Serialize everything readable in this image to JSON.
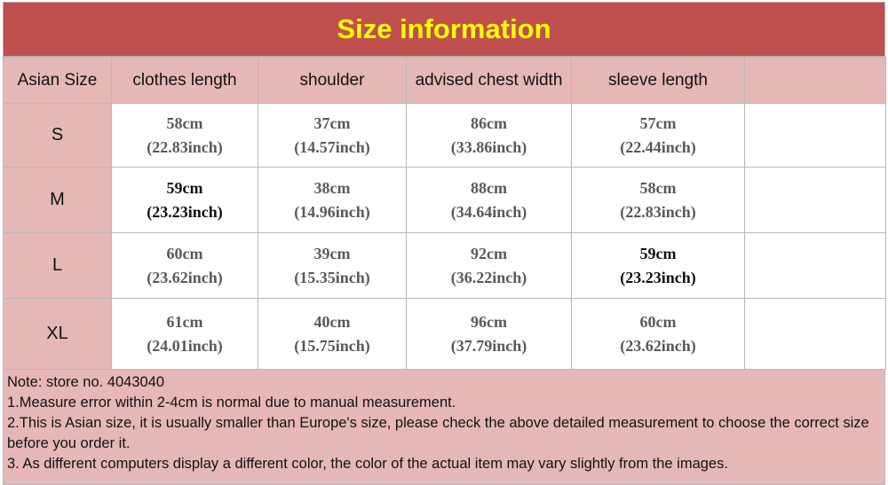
{
  "header": {
    "title": "Size information"
  },
  "table": {
    "columns": [
      "Asian Size",
      "clothes length",
      "shoulder",
      "advised chest width",
      "sleeve length"
    ],
    "rows": [
      {
        "size": "S",
        "cells": [
          [
            "58cm",
            "(22.83inch)"
          ],
          [
            "37cm",
            "(14.57inch)"
          ],
          [
            "86cm",
            "(33.86inch)"
          ],
          [
            "57cm",
            "(22.44inch)"
          ]
        ]
      },
      {
        "size": "M",
        "cells": [
          [
            "59cm",
            "(23.23inch)"
          ],
          [
            "38cm",
            "(14.96inch)"
          ],
          [
            "88cm",
            "(34.64inch)"
          ],
          [
            "58cm",
            "(22.83inch)"
          ]
        ]
      },
      {
        "size": "L",
        "cells": [
          [
            "60cm",
            "(23.62inch)"
          ],
          [
            "39cm",
            "(15.35inch)"
          ],
          [
            "92cm",
            "(36.22inch)"
          ],
          [
            "59cm",
            "(23.23inch)"
          ]
        ]
      },
      {
        "size": "XL",
        "cells": [
          [
            "61cm",
            "(24.01inch)"
          ],
          [
            "40cm",
            "(15.75inch)"
          ],
          [
            "96cm",
            "(37.79inch)"
          ],
          [
            "60cm",
            "(23.62inch)"
          ]
        ]
      }
    ]
  },
  "notes": [
    "Note: store no. 4043040",
    "1.Measure error within 2-4cm is normal due to manual measurement.",
    "2.This is Asian size, it is usually smaller than Europe's size, please check the above detailed measurement to choose the correct size before you order it.",
    "3. As different computers display a different color, the color of the actual item may vary slightly from the images."
  ]
}
